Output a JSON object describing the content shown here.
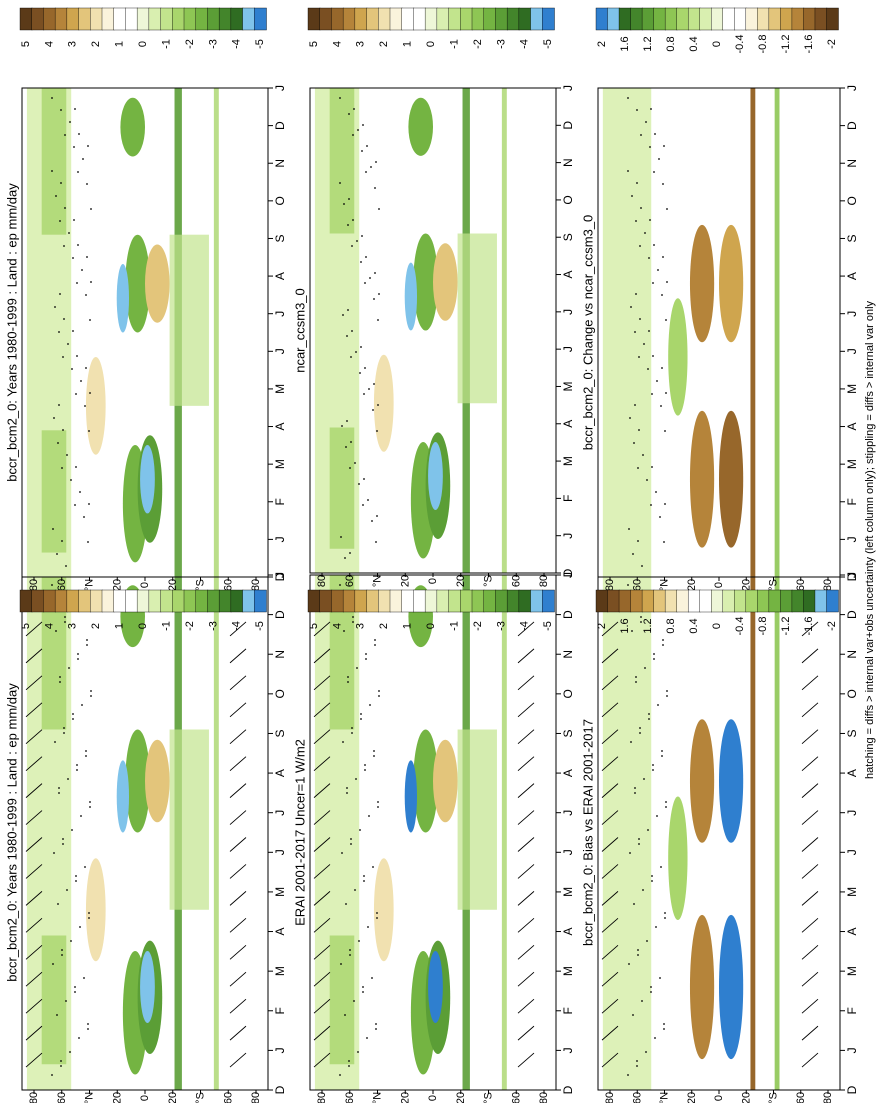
{
  "figure": {
    "footnote": "hatching = diffs > internal var+obs uncertainty (left column only); stippling = diffs > internal var only",
    "orientation_note": "figure is rotated 90 degrees clockwise"
  },
  "chart_data": [
    {
      "type": "heatmap",
      "title": "bccr_bcm2_0: Years 1980-1999 : Land : ep mm/day",
      "x_ticks": [
        "D",
        "J",
        "F",
        "M",
        "A",
        "M",
        "J",
        "J",
        "A",
        "S",
        "O",
        "N",
        "D",
        "J"
      ],
      "y_ticks": [
        "80",
        "60",
        "°N",
        "20",
        "0",
        "20",
        "°S",
        "60",
        "80"
      ],
      "colorbar": {
        "labels": [
          "5",
          "4",
          "3",
          "2",
          "1",
          "0",
          "-1",
          "-2",
          "-3",
          "-4",
          "-5"
        ],
        "colors": [
          "#5b3a18",
          "#7a4f22",
          "#97672b",
          "#b5843a",
          "#cfa54e",
          "#e3c57b",
          "#f1e1b0",
          "#faf3dc",
          "#ffffff",
          "#ffffff",
          "#eef7d8",
          "#d9efb0",
          "#c2e48d",
          "#a9d66c",
          "#8ec654",
          "#74b442",
          "#5b9e36",
          "#43852b",
          "#2f6c22",
          "#7fc3ea",
          "#2f7fcf"
        ]
      },
      "hatching": true
    },
    {
      "type": "heatmap",
      "title": "bccr_bcm2_0: Years 1980-1999 : Land : ep mm/day",
      "x_ticks": [
        "D",
        "J",
        "F",
        "M",
        "A",
        "M",
        "J",
        "J",
        "A",
        "S",
        "O",
        "N",
        "D",
        "J"
      ],
      "y_ticks": [
        "80",
        "60",
        "°N",
        "20",
        "0",
        "20",
        "°S",
        "60",
        "80"
      ],
      "colorbar": {
        "labels": [
          "5",
          "4",
          "3",
          "2",
          "1",
          "0",
          "-1",
          "-2",
          "-3",
          "-4",
          "-5"
        ],
        "colors": [
          "#5b3a18",
          "#7a4f22",
          "#97672b",
          "#b5843a",
          "#cfa54e",
          "#e3c57b",
          "#f1e1b0",
          "#faf3dc",
          "#ffffff",
          "#ffffff",
          "#eef7d8",
          "#d9efb0",
          "#c2e48d",
          "#a9d66c",
          "#8ec654",
          "#74b442",
          "#5b9e36",
          "#43852b",
          "#2f6c22",
          "#7fc3ea",
          "#2f7fcf"
        ]
      },
      "hatching": false
    },
    {
      "type": "heatmap",
      "title": "ERAI 2001-2017 Uncer=1 W/m2",
      "x_ticks": [
        "D",
        "J",
        "F",
        "M",
        "A",
        "M",
        "J",
        "J",
        "A",
        "S",
        "O",
        "N",
        "D",
        "J"
      ],
      "y_ticks": [
        "80",
        "60",
        "°N",
        "20",
        "0",
        "20",
        "°S",
        "60",
        "80"
      ],
      "colorbar": {
        "labels": [
          "5",
          "4",
          "3",
          "2",
          "1",
          "0",
          "-1",
          "-2",
          "-3",
          "-4",
          "-5"
        ],
        "colors": [
          "#5b3a18",
          "#7a4f22",
          "#97672b",
          "#b5843a",
          "#cfa54e",
          "#e3c57b",
          "#f1e1b0",
          "#faf3dc",
          "#ffffff",
          "#ffffff",
          "#eef7d8",
          "#d9efb0",
          "#c2e48d",
          "#a9d66c",
          "#8ec654",
          "#74b442",
          "#5b9e36",
          "#43852b",
          "#2f6c22",
          "#7fc3ea",
          "#2f7fcf"
        ]
      },
      "hatching": true
    },
    {
      "type": "heatmap",
      "title": "ncar_ccsm3_0",
      "x_ticks": [
        "D",
        "J",
        "F",
        "M",
        "A",
        "M",
        "J",
        "J",
        "A",
        "S",
        "O",
        "N",
        "D",
        "J"
      ],
      "y_ticks": [
        "80",
        "60",
        "°N",
        "20",
        "0",
        "20",
        "°S",
        "60",
        "80"
      ],
      "colorbar": {
        "labels": [
          "5",
          "4",
          "3",
          "2",
          "1",
          "0",
          "-1",
          "-2",
          "-3",
          "-4",
          "-5"
        ],
        "colors": [
          "#5b3a18",
          "#7a4f22",
          "#97672b",
          "#b5843a",
          "#cfa54e",
          "#e3c57b",
          "#f1e1b0",
          "#faf3dc",
          "#ffffff",
          "#ffffff",
          "#eef7d8",
          "#d9efb0",
          "#c2e48d",
          "#a9d66c",
          "#8ec654",
          "#74b442",
          "#5b9e36",
          "#43852b",
          "#2f6c22",
          "#7fc3ea",
          "#2f7fcf"
        ]
      },
      "hatching": false
    },
    {
      "type": "heatmap",
      "title": "bccr_bcm2_0: Bias vs ERAI 2001-2017",
      "x_ticks": [
        "D",
        "J",
        "F",
        "M",
        "A",
        "M",
        "J",
        "J",
        "A",
        "S",
        "O",
        "N",
        "D",
        "J"
      ],
      "y_ticks": [
        "80",
        "60",
        "°N",
        "20",
        "0",
        "20",
        "°S",
        "60",
        "80"
      ],
      "colorbar": {
        "labels": [
          "2",
          "1.6",
          "1.2",
          "0.8",
          "0.4",
          "0",
          "-0.4",
          "-0.8",
          "-1.2",
          "-1.6",
          "-2"
        ],
        "colors": [
          "#5b3a18",
          "#7a4f22",
          "#97672b",
          "#b5843a",
          "#cfa54e",
          "#e3c57b",
          "#f1e1b0",
          "#faf3dc",
          "#ffffff",
          "#ffffff",
          "#eef7d8",
          "#d9efb0",
          "#c2e48d",
          "#a9d66c",
          "#8ec654",
          "#74b442",
          "#5b9e36",
          "#43852b",
          "#2f6c22",
          "#7fc3ea",
          "#2f7fcf"
        ]
      },
      "hatching": true
    },
    {
      "type": "heatmap",
      "title": "bccr_bcm2_0: Change vs ncar_ccsm3_0",
      "x_ticks": [
        "D",
        "J",
        "F",
        "M",
        "A",
        "M",
        "J",
        "J",
        "A",
        "S",
        "O",
        "N",
        "D",
        "J"
      ],
      "y_ticks": [
        "80",
        "60",
        "°N",
        "20",
        "0",
        "20",
        "°S",
        "60",
        "80"
      ],
      "colorbar": {
        "labels": [
          "2",
          "1.6",
          "1.2",
          "0.8",
          "0.4",
          "0",
          "-0.4",
          "-0.8",
          "-1.2",
          "-1.6",
          "-2"
        ],
        "colors": [
          "#2f7fcf",
          "#7fc3ea",
          "#2f6c22",
          "#43852b",
          "#5b9e36",
          "#74b442",
          "#8ec654",
          "#a9d66c",
          "#c2e48d",
          "#d9efb0",
          "#eef7d8",
          "#ffffff",
          "#ffffff",
          "#faf3dc",
          "#f1e1b0",
          "#e3c57b",
          "#cfa54e",
          "#b5843a",
          "#97672b",
          "#7a4f22",
          "#5b3a18"
        ]
      },
      "hatching": false
    }
  ]
}
